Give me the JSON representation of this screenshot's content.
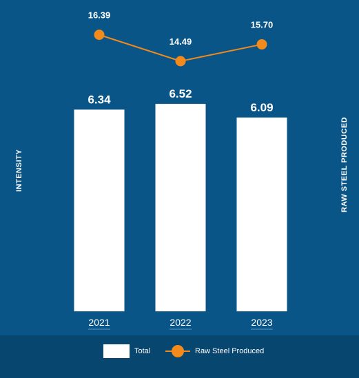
{
  "chart_data": {
    "type": "bar",
    "categories": [
      "2021",
      "2022",
      "2023"
    ],
    "series": [
      {
        "name": "Total",
        "type": "bar",
        "values": [
          6.34,
          6.52,
          6.09
        ],
        "labels": [
          "6.34",
          "6.52",
          "6.09"
        ]
      },
      {
        "name": "Raw Steel Produced",
        "type": "line",
        "values": [
          16.39,
          14.49,
          15.7
        ],
        "labels": [
          "16.39",
          "14.49",
          "15.70"
        ]
      }
    ],
    "ylabel_left": "INTENSITY",
    "ylabel_right": "RAW STEEL PRODUCED",
    "ylim_left": [
      0,
      7
    ],
    "ylim_right": [
      0,
      20
    ],
    "legend_position": "bottom",
    "grid": false
  },
  "colors": {
    "background": "#0a5588",
    "bar": "#ffffff",
    "line": "#f28a1c",
    "text": "#ffffff"
  }
}
